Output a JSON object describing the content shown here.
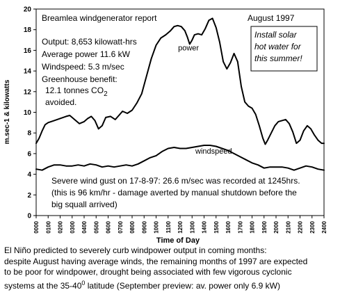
{
  "chart_data": {
    "type": "line",
    "title": "Breamlea windgenerator report",
    "period": "August 1997",
    "xlabel": "Time of Day",
    "ylabel": "m.sec-1 & kilowatts",
    "ylim": [
      0,
      20
    ],
    "yticks": [
      "0",
      "2",
      "4",
      "6",
      "8",
      "10",
      "12",
      "14",
      "16",
      "18",
      "20"
    ],
    "xticks": [
      "0000",
      "0100",
      "0200",
      "0300",
      "0400",
      "0500",
      "0600",
      "0700",
      "0800",
      "0900",
      "1000",
      "1100",
      "1200",
      "1300",
      "1400",
      "1500",
      "1600",
      "1700",
      "1800",
      "1900",
      "2000",
      "2100",
      "2200",
      "2300",
      "2400"
    ],
    "xlim": [
      0,
      24
    ],
    "series": [
      {
        "name": "power",
        "x": [
          0,
          0.25,
          0.5,
          0.75,
          1,
          1.5,
          2,
          2.5,
          2.8,
          3.2,
          3.6,
          4,
          4.3,
          4.6,
          4.9,
          5.2,
          5.5,
          5.8,
          6.2,
          6.6,
          6.9,
          7.2,
          7.6,
          8,
          8.4,
          8.8,
          9.2,
          9.6,
          10,
          10.4,
          10.8,
          11.2,
          11.5,
          11.8,
          12.1,
          12.4,
          12.6,
          12.8,
          13,
          13.2,
          13.5,
          13.8,
          14.1,
          14.4,
          14.7,
          15,
          15.3,
          15.6,
          15.9,
          16.2,
          16.5,
          16.8,
          17.1,
          17.4,
          17.7,
          18,
          18.3,
          18.6,
          18.9,
          19.1,
          19.3,
          19.6,
          19.9,
          20.2,
          20.5,
          20.8,
          21.1,
          21.4,
          21.7,
          22,
          22.3,
          22.6,
          22.9,
          23.2,
          23.5,
          23.8,
          24
        ],
        "values": [
          7.0,
          7.5,
          8.2,
          8.8,
          9.0,
          9.2,
          9.4,
          9.6,
          9.7,
          9.3,
          8.9,
          9.1,
          9.4,
          9.6,
          9.2,
          8.4,
          8.7,
          9.5,
          9.6,
          9.3,
          9.7,
          10.1,
          9.9,
          10.2,
          10.9,
          11.8,
          13.5,
          15.2,
          16.5,
          17.2,
          17.5,
          17.9,
          18.3,
          18.4,
          18.3,
          17.9,
          17.3,
          16.6,
          17.0,
          17.5,
          17.6,
          17.5,
          18.1,
          18.9,
          19.1,
          18.2,
          16.8,
          14.9,
          14.2,
          14.8,
          15.7,
          14.9,
          12.5,
          11.0,
          10.6,
          10.4,
          9.8,
          8.7,
          7.5,
          6.9,
          7.3,
          8.0,
          8.7,
          9.1,
          9.2,
          9.3,
          8.9,
          8.1,
          7.0,
          7.3,
          8.2,
          8.7,
          8.4,
          7.8,
          7.3,
          7.0,
          7.0
        ]
      },
      {
        "name": "windspeed",
        "x": [
          0,
          0.5,
          1,
          1.5,
          2,
          2.5,
          3,
          3.5,
          4,
          4.5,
          5,
          5.5,
          6,
          6.5,
          7,
          7.5,
          8,
          8.5,
          9,
          9.5,
          10,
          10.5,
          11,
          11.5,
          12,
          12.5,
          13,
          13.5,
          14,
          14.5,
          15,
          15.5,
          16,
          16.5,
          17,
          17.5,
          18,
          18.5,
          19,
          19.5,
          20,
          20.5,
          21,
          21.5,
          22,
          22.5,
          23,
          23.5,
          24
        ],
        "values": [
          4.5,
          4.4,
          4.7,
          4.9,
          4.9,
          4.8,
          4.8,
          4.9,
          4.8,
          5.0,
          4.9,
          4.7,
          4.8,
          4.7,
          4.8,
          4.9,
          4.8,
          5.0,
          5.3,
          5.6,
          5.8,
          6.2,
          6.5,
          6.6,
          6.5,
          6.5,
          6.6,
          6.7,
          6.8,
          6.8,
          6.7,
          6.5,
          6.3,
          6.0,
          5.7,
          5.4,
          5.1,
          4.9,
          4.6,
          4.7,
          4.7,
          4.7,
          4.6,
          4.4,
          4.6,
          4.8,
          4.7,
          4.5,
          4.4
        ]
      }
    ],
    "series_labels": [
      "power",
      "windspeed"
    ],
    "grid": false,
    "annotations": {
      "summary_lines": [
        "Output: 8,653 kilowatt-hrs",
        "Average power 11.6 kW",
        "Windspeed: 5.3 m/sec",
        "Greenhouse benefit:"
      ],
      "greenhouse_value": "12.1 tonnes CO",
      "co2_subscript": "2",
      "avoided": "avoided.",
      "note_lines": [
        "Install solar",
        "hot water for",
        "this summer!"
      ],
      "gust_lines": [
        "Severe wind gust on 17-8-97: 26.6 m/sec was recorded at 1245hrs.",
        "(this is 96 km/hr - damage averted by manual shutdown before the",
        "big squall arrived)"
      ]
    }
  },
  "caption": {
    "line1": "El Niño predicted to severely curb windpower output in coming months:",
    "line2": "despite August having average winds, the remaining months of 1997 are expected",
    "line3": "to be poor for windpower, drought being associated with few vigorous cyclonic",
    "line4_part1": "systems at the 35-40",
    "line4_sup": "0",
    "line4_part2": "  latitude   (September preview: av. power only 6.9 kW)"
  }
}
